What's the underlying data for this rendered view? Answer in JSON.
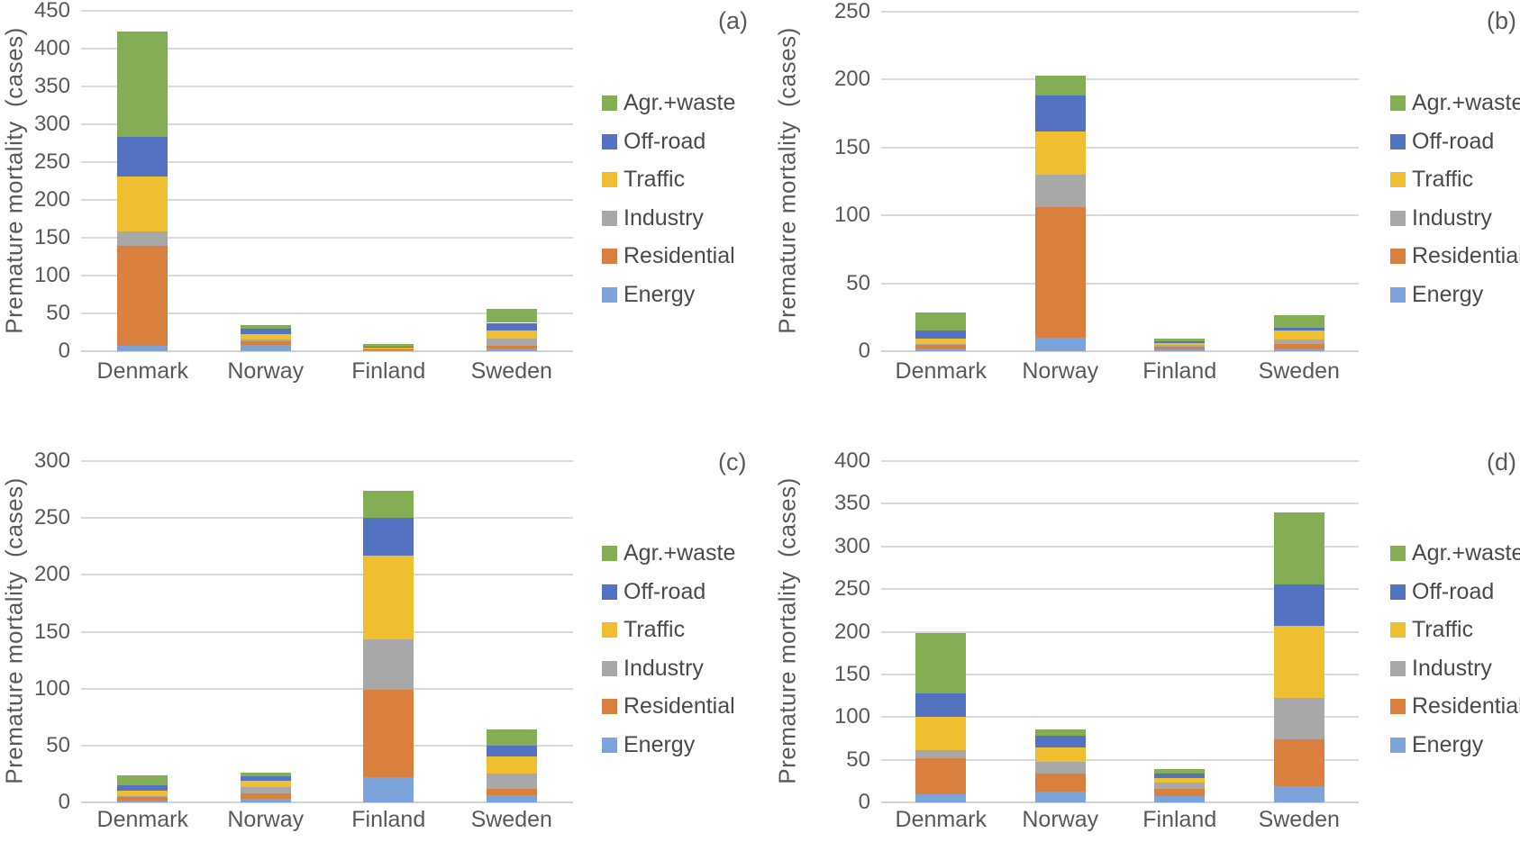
{
  "figure_title": "",
  "axis": {
    "ylabel": "Premature mortality  (cases)",
    "categories": [
      "Denmark",
      "Norway",
      "Finland",
      "Sweden"
    ]
  },
  "legend": {
    "order_top_to_bottom": [
      "Agr.+waste",
      "Off-road",
      "Traffic",
      "Industry",
      "Residential",
      "Energy"
    ]
  },
  "colors": {
    "Energy": "#7ca4db",
    "Residential": "#d9803f",
    "Industry": "#a8a8a8",
    "Traffic": "#efbe31",
    "Off-road": "#5372c1",
    "Agr.+waste": "#85ad53"
  },
  "chart_data": [
    {
      "type": "bar",
      "stacked": true,
      "panel_label": "(a)",
      "ylabel": "Premature mortality  (cases)",
      "categories": [
        "Denmark",
        "Norway",
        "Finland",
        "Sweden"
      ],
      "ylim": [
        0,
        450
      ],
      "ytick_step": 50,
      "grid": true,
      "legend_position": "right",
      "series": [
        {
          "name": "Energy",
          "values": [
            7,
            8,
            1,
            3
          ]
        },
        {
          "name": "Residential",
          "values": [
            132,
            5,
            1.5,
            4.5
          ]
        },
        {
          "name": "Industry",
          "values": [
            19,
            2,
            1,
            9
          ]
        },
        {
          "name": "Traffic",
          "values": [
            73,
            8,
            2,
            10.5
          ]
        },
        {
          "name": "Off-road",
          "values": [
            52,
            7,
            1,
            10.5
          ]
        },
        {
          "name": "Agr.+waste",
          "values": [
            140,
            4,
            2.5,
            19
          ]
        }
      ]
    },
    {
      "type": "bar",
      "stacked": true,
      "panel_label": "(b)",
      "ylabel": "Premature mortality  (cases)",
      "categories": [
        "Denmark",
        "Norway",
        "Finland",
        "Sweden"
      ],
      "ylim": [
        0,
        250
      ],
      "ytick_step": 50,
      "grid": true,
      "legend_position": "right",
      "series": [
        {
          "name": "Energy",
          "values": [
            2,
            10,
            1.5,
            2
          ]
        },
        {
          "name": "Residential",
          "values": [
            2.5,
            96,
            1.5,
            3
          ]
        },
        {
          "name": "Industry",
          "values": [
            1,
            24,
            1.5,
            3.5
          ]
        },
        {
          "name": "Traffic",
          "values": [
            4,
            32,
            1.5,
            6.5
          ]
        },
        {
          "name": "Off-road",
          "values": [
            5.5,
            26,
            1,
            2.5
          ]
        },
        {
          "name": "Agr.+waste",
          "values": [
            13.5,
            15,
            2,
            9
          ]
        }
      ]
    },
    {
      "type": "bar",
      "stacked": true,
      "panel_label": "(c)",
      "ylabel": "Premature mortality  (cases)",
      "categories": [
        "Denmark",
        "Norway",
        "Finland",
        "Sweden"
      ],
      "ylim": [
        0,
        300
      ],
      "ytick_step": 50,
      "grid": true,
      "legend_position": "right",
      "series": [
        {
          "name": "Energy",
          "values": [
            1.5,
            3.5,
            22,
            6.5
          ]
        },
        {
          "name": "Residential",
          "values": [
            3,
            4.5,
            77,
            5
          ]
        },
        {
          "name": "Industry",
          "values": [
            1,
            5.5,
            44,
            13.5
          ]
        },
        {
          "name": "Traffic",
          "values": [
            4.5,
            5.5,
            74,
            15.5
          ]
        },
        {
          "name": "Off-road",
          "values": [
            5,
            4,
            33,
            9.5
          ]
        },
        {
          "name": "Agr.+waste",
          "values": [
            9,
            3,
            24,
            14
          ]
        }
      ]
    },
    {
      "type": "bar",
      "stacked": true,
      "panel_label": "(d)",
      "ylabel": "Premature mortality  (cases)",
      "categories": [
        "Denmark",
        "Norway",
        "Finland",
        "Sweden"
      ],
      "ylim": [
        0,
        400
      ],
      "ytick_step": 50,
      "grid": true,
      "legend_position": "right",
      "series": [
        {
          "name": "Energy",
          "values": [
            9,
            13,
            7,
            19
          ]
        },
        {
          "name": "Residential",
          "values": [
            43,
            21,
            8.5,
            55
          ]
        },
        {
          "name": "Industry",
          "values": [
            9,
            14,
            7.5,
            48
          ]
        },
        {
          "name": "Traffic",
          "values": [
            39,
            16,
            6,
            85
          ]
        },
        {
          "name": "Off-road",
          "values": [
            28,
            14,
            5,
            48
          ]
        },
        {
          "name": "Agr.+waste",
          "values": [
            70,
            7,
            5.5,
            85
          ]
        }
      ]
    }
  ]
}
